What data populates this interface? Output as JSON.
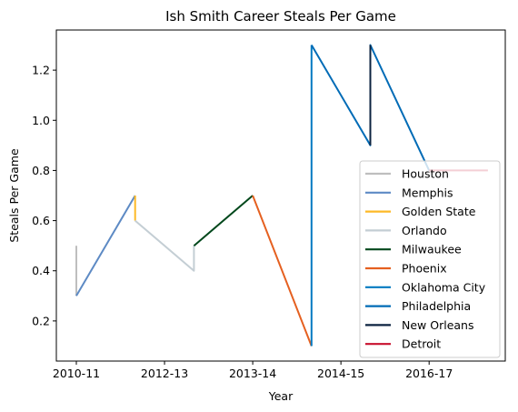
{
  "chart_data": {
    "type": "line",
    "title": "Ish Smith Career Steals Per Game",
    "xlabel": "Year",
    "ylabel": "Steals Per Game",
    "x_tick_labels": [
      "2010-11",
      "2012-13",
      "2013-14",
      "2014-15",
      "2016-17"
    ],
    "y_ticks": [
      0.2,
      0.4,
      0.6,
      0.8,
      1.0,
      1.2
    ],
    "ylim": [
      0.04,
      1.36
    ],
    "grid": false,
    "legend_position": "lower-right",
    "series": [
      {
        "name": "Houston",
        "color": "#bebebe",
        "points": [
          {
            "x": 0,
            "y": 0.5
          },
          {
            "x": 0,
            "y": 0.3
          }
        ]
      },
      {
        "name": "Memphis",
        "color": "#5d8ac4",
        "points": [
          {
            "x": 0,
            "y": 0.3
          },
          {
            "x": 1,
            "y": 0.7
          }
        ]
      },
      {
        "name": "Golden State",
        "color": "#fdb927",
        "points": [
          {
            "x": 1,
            "y": 0.7
          },
          {
            "x": 1,
            "y": 0.6
          }
        ]
      },
      {
        "name": "Orlando",
        "color": "#c4ced4",
        "points": [
          {
            "x": 1,
            "y": 0.6
          },
          {
            "x": 2,
            "y": 0.4
          },
          {
            "x": 2,
            "y": 0.5
          }
        ]
      },
      {
        "name": "Milwaukee",
        "color": "#00471b",
        "points": [
          {
            "x": 2,
            "y": 0.5
          },
          {
            "x": 3,
            "y": 0.7
          }
        ]
      },
      {
        "name": "Phoenix",
        "color": "#e56020",
        "points": [
          {
            "x": 3,
            "y": 0.7
          },
          {
            "x": 4,
            "y": 0.1
          }
        ]
      },
      {
        "name": "Oklahoma City",
        "color": "#007ac1",
        "points": [
          {
            "x": 4,
            "y": 0.1
          },
          {
            "x": 4,
            "y": 1.3
          }
        ]
      },
      {
        "name": "Philadelphia",
        "color": "#006bb6",
        "points": [
          {
            "x": 4,
            "y": 1.3
          },
          {
            "x": 5,
            "y": 0.9
          },
          {
            "x": 5,
            "y": 1.3
          },
          {
            "x": 6,
            "y": 0.8
          }
        ]
      },
      {
        "name": "New Orleans",
        "color": "#0c2340",
        "points": [
          {
            "x": 5,
            "y": 0.9
          },
          {
            "x": 5,
            "y": 1.3
          }
        ]
      },
      {
        "name": "Detroit",
        "color": "#c8102e",
        "points": [
          {
            "x": 6,
            "y": 0.8
          },
          {
            "x": 7,
            "y": 0.8
          }
        ]
      }
    ]
  }
}
